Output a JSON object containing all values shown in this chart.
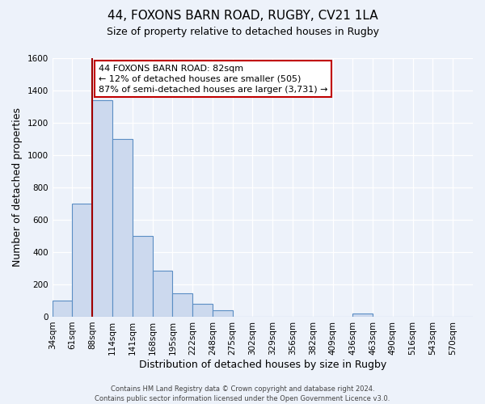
{
  "title": "44, FOXONS BARN ROAD, RUGBY, CV21 1LA",
  "subtitle": "Size of property relative to detached houses in Rugby",
  "xlabel": "Distribution of detached houses by size in Rugby",
  "ylabel": "Number of detached properties",
  "bin_labels": [
    "34sqm",
    "61sqm",
    "88sqm",
    "114sqm",
    "141sqm",
    "168sqm",
    "195sqm",
    "222sqm",
    "248sqm",
    "275sqm",
    "302sqm",
    "329sqm",
    "356sqm",
    "382sqm",
    "409sqm",
    "436sqm",
    "463sqm",
    "490sqm",
    "516sqm",
    "543sqm",
    "570sqm"
  ],
  "bar_values": [
    100,
    700,
    1340,
    1100,
    500,
    285,
    145,
    80,
    40,
    0,
    0,
    0,
    0,
    0,
    0,
    20,
    0,
    0,
    0,
    0,
    0
  ],
  "bar_color": "#ccd9ee",
  "bar_edge_color": "#5b8ec4",
  "vline_color": "#a00000",
  "ylim": [
    0,
    1600
  ],
  "yticks": [
    0,
    200,
    400,
    600,
    800,
    1000,
    1200,
    1400,
    1600
  ],
  "annotation_text": "44 FOXONS BARN ROAD: 82sqm\n← 12% of detached houses are smaller (505)\n87% of semi-detached houses are larger (3,731) →",
  "annotation_box_color": "#ffffff",
  "annotation_box_edge": "#c00000",
  "footer_text": "Contains HM Land Registry data © Crown copyright and database right 2024.\nContains public sector information licensed under the Open Government Licence v3.0.",
  "background_color": "#edf2fa",
  "plot_bg_color": "#edf2fa",
  "grid_color": "#ffffff",
  "title_fontsize": 11,
  "subtitle_fontsize": 9,
  "axis_label_fontsize": 9,
  "tick_fontsize": 7.5,
  "footer_fontsize": 6,
  "annotation_fontsize": 8
}
